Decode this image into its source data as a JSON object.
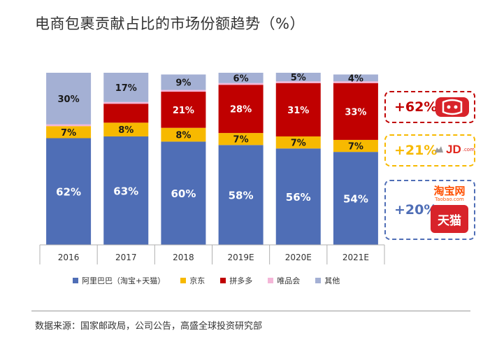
{
  "title": "电商包裹贡献占比的市场份额趋势（%）",
  "chart_data": {
    "type": "bar",
    "stacked": true,
    "percent_stacked": true,
    "categories": [
      "2016",
      "2017",
      "2018",
      "2019E",
      "2020E",
      "2021E"
    ],
    "series": [
      {
        "name": "阿里巴巴（淘宝+天猫）",
        "color": "#4f6eb6",
        "values": [
          62,
          63,
          60,
          58,
          56,
          54
        ]
      },
      {
        "name": "京东",
        "color": "#f7b900",
        "values": [
          7,
          8,
          8,
          7,
          7,
          7
        ]
      },
      {
        "name": "拼多多",
        "color": "#c00000",
        "values": [
          0,
          11,
          21,
          28,
          31,
          33
        ]
      },
      {
        "name": "唯品会",
        "color": "#f4b6d8",
        "values": [
          1,
          1,
          1,
          1,
          1,
          1
        ]
      },
      {
        "name": "其他",
        "color": "#a4b0d4",
        "values": [
          30,
          17,
          9,
          6,
          5,
          4
        ]
      }
    ],
    "data_labels": {
      "阿里巴巴（淘宝+天猫）": [
        "62%",
        "63%",
        "60%",
        "58%",
        "56%",
        "54%"
      ],
      "京东": [
        "7%",
        "8%",
        "8%",
        "7%",
        "7%",
        "7%"
      ],
      "拼多多": [
        "",
        "",
        "21%",
        "28%",
        "31%",
        "33%"
      ],
      "唯品会": [
        "",
        "",
        "",
        "",
        "",
        ""
      ],
      "其他": [
        "30%",
        "17%",
        "9%",
        "6%",
        "5%",
        "4%"
      ]
    },
    "ylim": [
      0,
      100
    ],
    "legend_position": "bottom"
  },
  "callouts": [
    {
      "label": "+62%",
      "color": "#c00000",
      "logo": "pinduoduo-logo"
    },
    {
      "label": "+21%",
      "color": "#f7b900",
      "logo": "jd-logo",
      "logo_text": "JD",
      "logo_subtext": ".com"
    },
    {
      "label": "+20%",
      "color": "#4f6eb6",
      "logo": "taobao-tmall-logo",
      "logo_text": "淘宝网",
      "logo_subtext": "Taobao.com",
      "logo_text2": "天猫"
    }
  ],
  "source": "数据来源：国家邮政局，公司公告，高盛全球投资研究部"
}
